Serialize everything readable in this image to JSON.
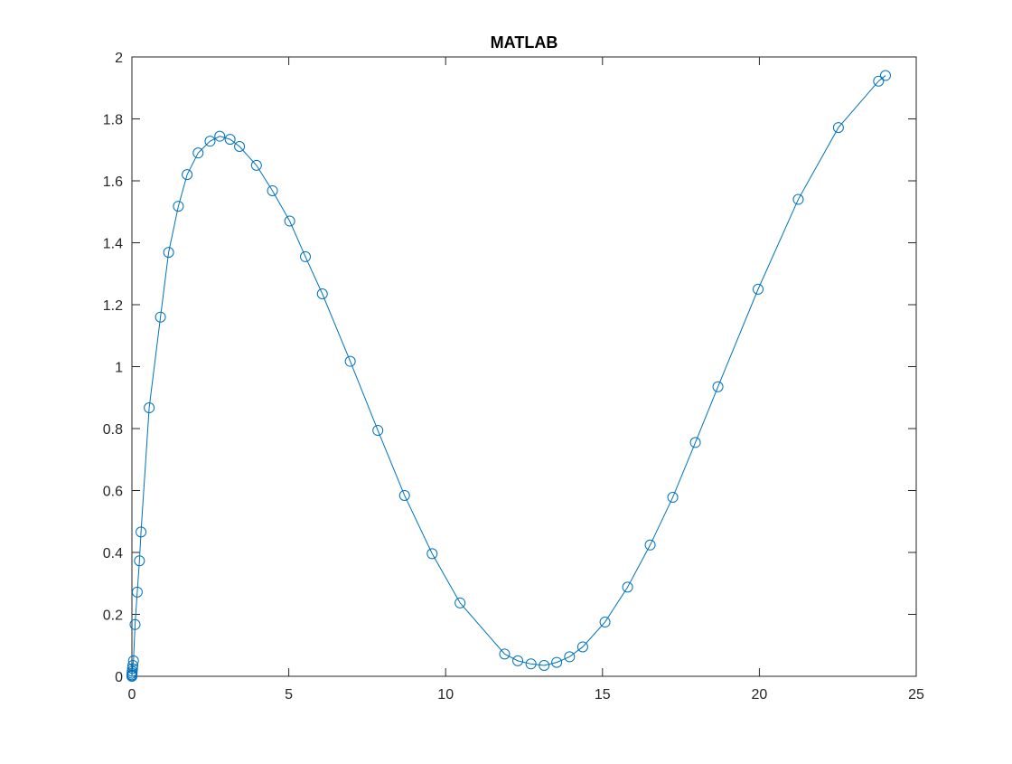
{
  "chart_data": {
    "type": "line",
    "title": "MATLAB",
    "xlabel": "",
    "ylabel": "",
    "xlim": [
      0,
      25
    ],
    "ylim": [
      0,
      2
    ],
    "xticks": [
      0,
      5,
      10,
      15,
      20,
      25
    ],
    "yticks": [
      0,
      0.2,
      0.4,
      0.6,
      0.8,
      1,
      1.2,
      1.4,
      1.6,
      1.8,
      2
    ],
    "xtick_labels": [
      "0",
      "5",
      "10",
      "15",
      "20",
      "25"
    ],
    "ytick_labels": [
      "0",
      "0.2",
      "0.4",
      "0.6",
      "0.8",
      "1",
      "1.2",
      "1.4",
      "1.6",
      "1.8",
      "2"
    ],
    "grid": false,
    "marker": "circle",
    "line_color": "#0072BD",
    "series": [
      {
        "x": [
          0,
          0.001,
          0.003,
          0.006,
          0.01,
          0.02,
          0.03,
          0.05,
          0.1,
          0.17,
          0.24,
          0.29,
          0.55,
          0.91,
          1.17,
          1.48,
          1.76,
          2.11,
          2.49,
          2.8,
          3.13,
          3.43,
          3.97,
          4.48,
          5.03,
          5.53,
          6.07,
          6.96,
          7.84,
          8.69,
          9.57,
          10.46,
          11.88,
          12.3,
          12.72,
          13.14,
          13.54,
          13.95,
          14.37,
          15.08,
          15.8,
          16.52,
          17.24,
          17.96,
          18.68,
          19.96,
          21.24,
          22.52,
          23.8,
          24.02
        ],
        "y": [
          0,
          0.002,
          0.005,
          0.01,
          0.016,
          0.025,
          0.035,
          0.05,
          0.167,
          0.272,
          0.373,
          0.466,
          0.867,
          1.16,
          1.369,
          1.518,
          1.62,
          1.69,
          1.728,
          1.744,
          1.734,
          1.711,
          1.65,
          1.568,
          1.47,
          1.355,
          1.235,
          1.017,
          0.794,
          0.584,
          0.396,
          0.237,
          0.072,
          0.05,
          0.04,
          0.035,
          0.045,
          0.063,
          0.095,
          0.175,
          0.288,
          0.424,
          0.578,
          0.755,
          0.935,
          1.25,
          1.54,
          1.772,
          1.922,
          1.94
        ]
      }
    ]
  }
}
